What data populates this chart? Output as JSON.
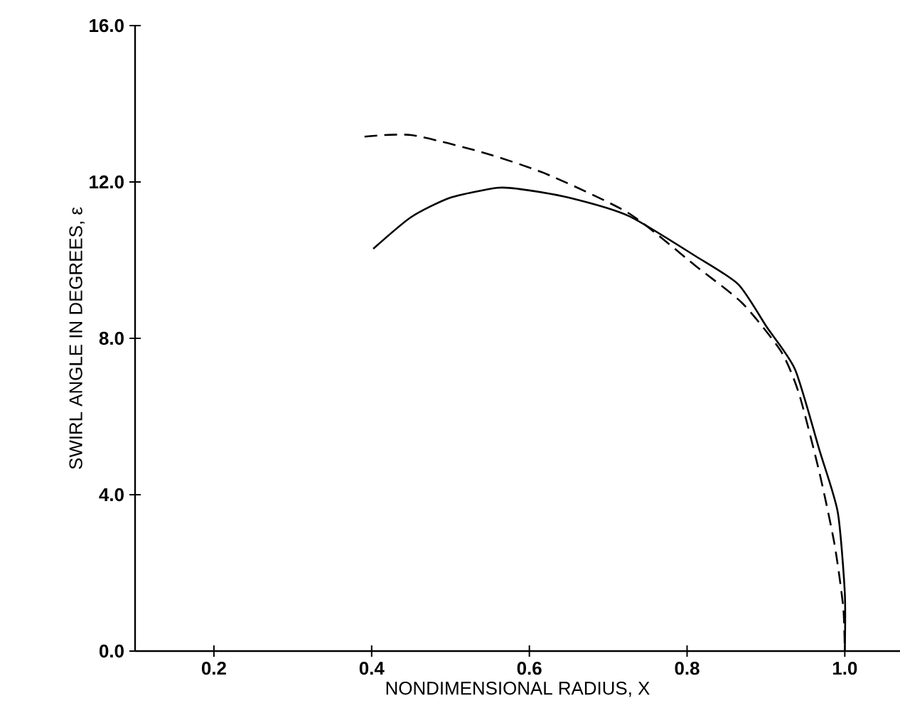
{
  "chart_data": {
    "type": "line",
    "xlabel": "NONDIMENSIONAL RADIUS, X",
    "ylabel": "SWIRL ANGLE IN DEGREES, ε",
    "xlim": [
      0.1,
      1.07
    ],
    "ylim": [
      0,
      16
    ],
    "xticks": [
      0.2,
      0.4,
      0.6,
      0.8,
      {
        "value": 1.0,
        "label": "1.0"
      }
    ],
    "yticks": [
      {
        "value": 0,
        "label": "0.0"
      },
      {
        "value": 4,
        "label": "4.0"
      },
      {
        "value": 8,
        "label": "8.0"
      },
      {
        "value": 12,
        "label": "12.0"
      },
      {
        "value": 16,
        "label": "16.0"
      }
    ],
    "marker": "none",
    "series": [
      {
        "color": "#000000",
        "line_style": "solid",
        "x": [
          0.402,
          0.45,
          0.5,
          0.559,
          0.587,
          0.65,
          0.726,
          0.811,
          0.865,
          0.901,
          0.937,
          0.968,
          0.991,
          1.0,
          1.0
        ],
        "values": [
          10.29,
          11.1,
          11.6,
          11.85,
          11.82,
          11.6,
          11.13,
          10.1,
          9.38,
          8.29,
          7.2,
          5.13,
          3.56,
          1.49,
          0
        ]
      },
      {
        "color": "#000000",
        "line_style": "dashed",
        "x": [
          0.391,
          0.45,
          0.54,
          0.622,
          0.726,
          0.811,
          0.87,
          0.919,
          0.942,
          0.968,
          0.987,
          0.998,
          1.0
        ],
        "values": [
          13.16,
          13.2,
          12.76,
          12.2,
          11.2,
          9.85,
          8.9,
          7.67,
          6.58,
          4.55,
          2.73,
          1.13,
          0
        ]
      }
    ]
  }
}
